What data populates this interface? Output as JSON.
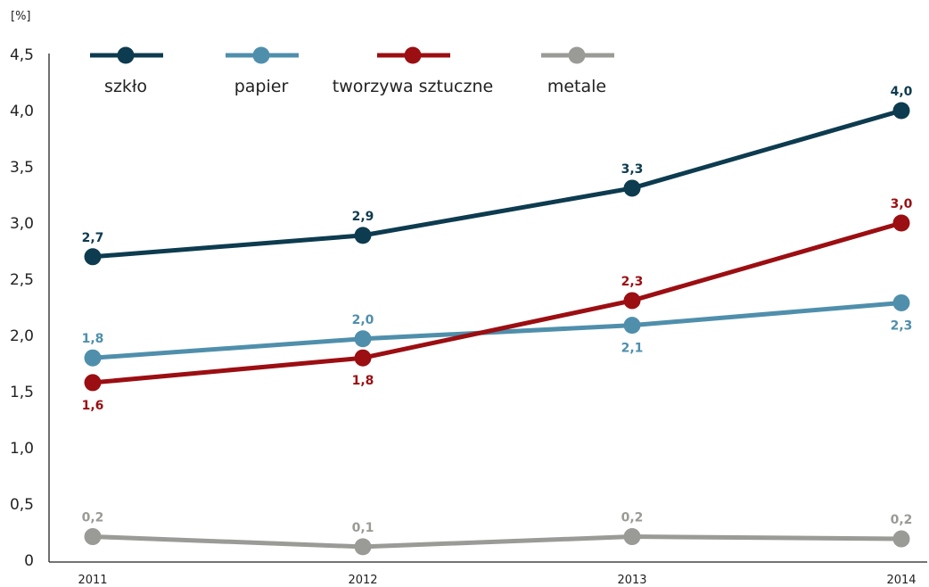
{
  "chart_data": {
    "type": "line",
    "unit_label": "[%]",
    "categories": [
      "2011",
      "2012",
      "2013",
      "2014"
    ],
    "ylim": [
      0,
      4.5
    ],
    "yticks": [
      "0",
      "0,5",
      "1,0",
      "1,5",
      "2,0",
      "2,5",
      "3,0",
      "3,5",
      "4,0",
      "4,5"
    ],
    "legend_position": "top",
    "grid": false,
    "series": [
      {
        "name": "szkło",
        "color": "#0d3b4f",
        "values": [
          2.7,
          2.89,
          3.31,
          4.0
        ],
        "labels": [
          "2,7",
          "2,9",
          "3,3",
          "4,0"
        ],
        "label_position": [
          "above",
          "above",
          "above",
          "above"
        ]
      },
      {
        "name": "papier",
        "color": "#4f8fac",
        "values": [
          1.8,
          1.97,
          2.09,
          2.29
        ],
        "labels": [
          "1,8",
          "2,0",
          "2,1",
          "2,3"
        ],
        "label_position": [
          "above",
          "above",
          "below",
          "below"
        ]
      },
      {
        "name": "tworzywa sztuczne",
        "color": "#9b0e12",
        "values": [
          1.58,
          1.8,
          2.31,
          3.0
        ],
        "labels": [
          "1,6",
          "1,8",
          "2,3",
          "3,0"
        ],
        "label_position": [
          "below",
          "below",
          "above",
          "above"
        ]
      },
      {
        "name": "metale",
        "color": "#9a9b96",
        "values": [
          0.21,
          0.12,
          0.21,
          0.19
        ],
        "labels": [
          "0,2",
          "0,1",
          "0,2",
          "0,2"
        ],
        "label_position": [
          "above",
          "above",
          "above",
          "above"
        ]
      }
    ]
  }
}
